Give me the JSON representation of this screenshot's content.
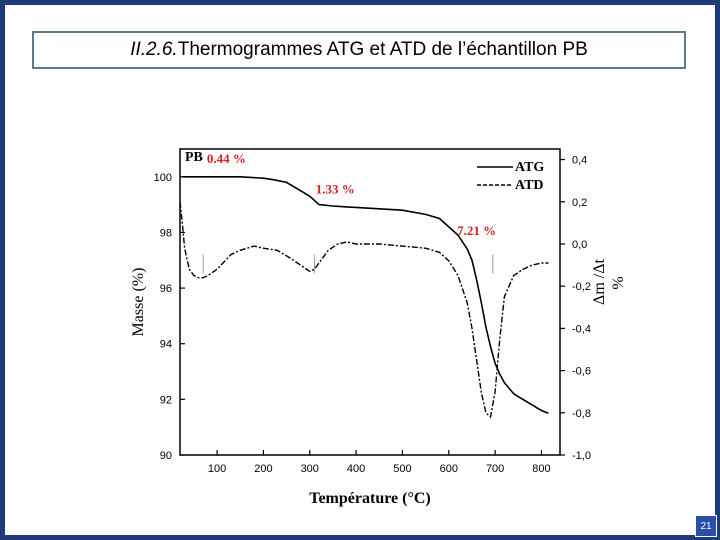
{
  "slide": {
    "section_number": "II.2.6.",
    "title": "Thermogrammes  ATG et ATD de l’échantillon PB",
    "page_number": "21"
  },
  "colors": {
    "frame": "#1f3a78",
    "title_border": "#5a7a8e",
    "annotation_red": "#d42020",
    "page_badge": "#2850a8"
  },
  "chart_data": {
    "type": "line",
    "sample_label": "PB",
    "xlabel": "Température (°C)",
    "ylabel": "Masse (%)",
    "y2label": "Δm /Δt",
    "y2label_extra": "%",
    "xlim": [
      20,
      840
    ],
    "ylim": [
      90,
      101
    ],
    "y2lim": [
      -1.0,
      0.45
    ],
    "x_ticks": [
      100,
      200,
      300,
      400,
      500,
      600,
      700,
      800
    ],
    "y_ticks": [
      90,
      92,
      94,
      96,
      98,
      100
    ],
    "y2_ticks": [
      -1.0,
      -0.8,
      -0.6,
      -0.4,
      -0.2,
      0.0,
      0.2,
      0.4
    ],
    "y2_tick_labels": [
      "-1,0",
      "-0,8",
      "-0,6",
      "-0,4",
      "-0,2",
      "0,0",
      "0,2",
      "0,4"
    ],
    "legend": {
      "position": "top-right",
      "entries": [
        "ATG",
        "ATD"
      ]
    },
    "annotations": [
      {
        "text": "0.44 %",
        "x": 120,
        "y": 100.5
      },
      {
        "text": "1.33 %",
        "x": 355,
        "y": 99.4
      },
      {
        "text": "7.21 %",
        "x": 660,
        "y": 97.9
      }
    ],
    "series": [
      {
        "name": "ATG",
        "axis": "left",
        "x": [
          25,
          100,
          150,
          200,
          220,
          250,
          280,
          300,
          320,
          350,
          380,
          400,
          450,
          500,
          550,
          580,
          600,
          620,
          640,
          650,
          660,
          670,
          680,
          690,
          700,
          710,
          720,
          740,
          760,
          780,
          800,
          815
        ],
        "y": [
          100.0,
          100.0,
          100.0,
          99.95,
          99.9,
          99.8,
          99.5,
          99.3,
          99.0,
          98.95,
          98.92,
          98.9,
          98.85,
          98.8,
          98.65,
          98.5,
          98.2,
          97.9,
          97.4,
          97.0,
          96.3,
          95.5,
          94.6,
          93.9,
          93.3,
          92.9,
          92.6,
          92.2,
          92.0,
          91.8,
          91.6,
          91.5
        ]
      },
      {
        "name": "ATD",
        "axis": "right",
        "x": [
          20,
          25,
          30,
          40,
          50,
          60,
          70,
          80,
          100,
          130,
          150,
          180,
          200,
          230,
          260,
          280,
          300,
          310,
          320,
          340,
          360,
          380,
          400,
          450,
          500,
          550,
          580,
          600,
          620,
          640,
          650,
          660,
          670,
          680,
          690,
          700,
          710,
          720,
          740,
          760,
          780,
          800,
          815
        ],
        "y": [
          0.2,
          0.1,
          -0.02,
          -0.12,
          -0.15,
          -0.16,
          -0.16,
          -0.15,
          -0.12,
          -0.05,
          -0.03,
          -0.01,
          -0.02,
          -0.03,
          -0.07,
          -0.1,
          -0.13,
          -0.12,
          -0.09,
          -0.03,
          0.0,
          0.01,
          0.0,
          0.0,
          -0.01,
          -0.02,
          -0.04,
          -0.08,
          -0.15,
          -0.28,
          -0.4,
          -0.55,
          -0.7,
          -0.8,
          -0.82,
          -0.7,
          -0.45,
          -0.25,
          -0.15,
          -0.12,
          -0.1,
          -0.09,
          -0.09
        ]
      }
    ]
  }
}
